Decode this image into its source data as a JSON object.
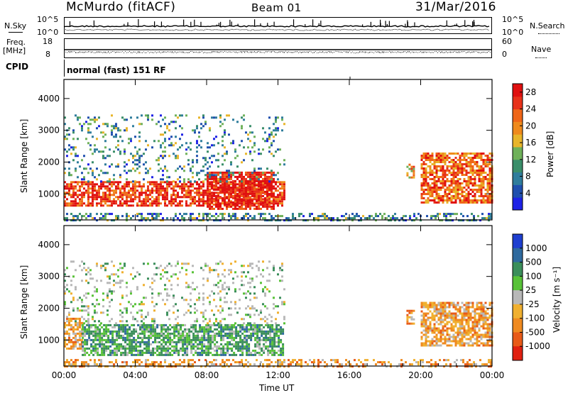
{
  "header": {
    "station": "McMurdo (fitACF)",
    "beam": "Beam 01",
    "date": "31/Mar/2016"
  },
  "top_panels": {
    "nsky_label": "N.Sky",
    "nsky_ticks": [
      "10^5",
      "10^0"
    ],
    "nsearch_label": "N.Search",
    "nsearch_ticks": [
      "10^5",
      "10^0"
    ],
    "freq_label_line1": "Freq.",
    "freq_label_line2": "[MHz]",
    "freq_ticks": [
      "18",
      "8"
    ],
    "nave_label": "Nave",
    "nave_ticks": [
      "60",
      "0"
    ],
    "cpid_label": "CPID",
    "cpid_value": "normal (fast) 151 RF"
  },
  "chart_data": [
    {
      "type": "heatmap",
      "title": "",
      "xlabel": "Time UT",
      "ylabel": "Slant Range [km]",
      "x_ticks": [
        "00:00",
        "04:00",
        "08:00",
        "12:00",
        "16:00",
        "20:00",
        "00:00"
      ],
      "y_ticks": [
        1000,
        2000,
        3000,
        4000
      ],
      "ylim": [
        180,
        4600
      ],
      "colorbar": {
        "label": "Power [dB]",
        "ticks": [
          4,
          8,
          12,
          16,
          20,
          24,
          28
        ],
        "range": [
          0,
          30
        ],
        "colors": [
          "#1e22e6",
          "#1f4fae",
          "#2f7d9c",
          "#3a8e6a",
          "#6fb15a",
          "#e8b52a",
          "#ef8a1c",
          "#ef6618",
          "#e8321a",
          "#e01010"
        ]
      },
      "regions": [
        {
          "t0": 0.0,
          "t1": 12.3,
          "r0": 600,
          "r1": 1400,
          "level": 0.85
        },
        {
          "t0": 8.0,
          "t1": 11.8,
          "r0": 500,
          "r1": 1700,
          "level": 0.95
        },
        {
          "t0": 0.0,
          "t1": 12.3,
          "r0": 1400,
          "r1": 3500,
          "level": 0.3
        },
        {
          "t0": 0.0,
          "t1": 24.0,
          "r0": 180,
          "r1": 400,
          "level": 0.3
        },
        {
          "t0": 19.2,
          "t1": 19.6,
          "r0": 1500,
          "r1": 1950,
          "level": 0.6
        },
        {
          "t0": 20.0,
          "t1": 24.0,
          "r0": 700,
          "r1": 2300,
          "level": 0.75
        }
      ]
    },
    {
      "type": "heatmap",
      "title": "",
      "xlabel": "Time UT",
      "ylabel": "Slant Range [km]",
      "x_ticks": [
        "00:00",
        "04:00",
        "08:00",
        "12:00",
        "16:00",
        "20:00",
        "00:00"
      ],
      "y_ticks": [
        1000,
        2000,
        3000,
        4000
      ],
      "ylim": [
        180,
        4600
      ],
      "colorbar": {
        "label": "Velocity [m s⁻¹]",
        "ticks": [
          1000,
          500,
          100,
          25,
          -25,
          -100,
          -500,
          -1000
        ],
        "colors": [
          "#1e3fd0",
          "#2f6a9e",
          "#3a8e5a",
          "#58c238",
          "#b8b8b8",
          "#f0b030",
          "#ef8a20",
          "#e85a18",
          "#e02010"
        ]
      },
      "regions": [
        {
          "t0": 0.0,
          "t1": 1.0,
          "r0": 700,
          "r1": 1700,
          "level": "orange"
        },
        {
          "t0": 1.0,
          "t1": 12.3,
          "r0": 500,
          "r1": 1500,
          "level": "green"
        },
        {
          "t0": 0.0,
          "t1": 12.3,
          "r0": 1500,
          "r1": 3500,
          "level": "grey"
        },
        {
          "t0": 0.0,
          "t1": 24.0,
          "r0": 180,
          "r1": 400,
          "level": "orange"
        },
        {
          "t0": 19.2,
          "t1": 19.6,
          "r0": 1500,
          "r1": 1950,
          "level": "orange"
        },
        {
          "t0": 20.0,
          "t1": 24.0,
          "r0": 800,
          "r1": 2200,
          "level": "orange"
        }
      ]
    }
  ]
}
